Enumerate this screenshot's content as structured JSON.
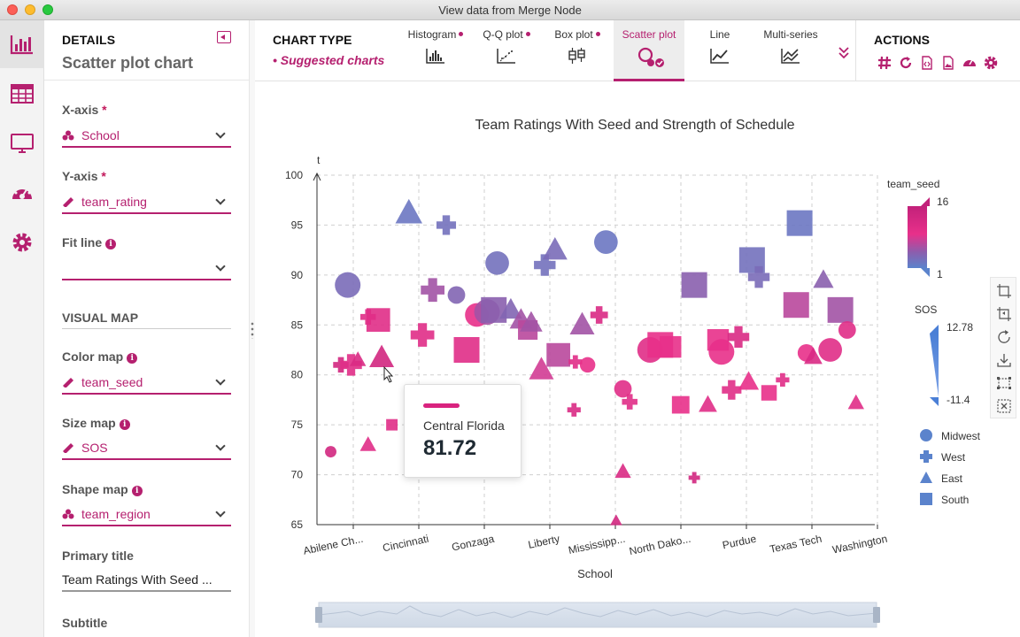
{
  "window": {
    "title": "View data from Merge Node"
  },
  "rail": {
    "items": [
      "chart",
      "table",
      "monitor",
      "dashboard",
      "settings"
    ]
  },
  "details": {
    "header": "DETAILS",
    "subheader": "Scatter plot chart",
    "x_axis": {
      "label": "X-axis",
      "required": "*",
      "value": "School"
    },
    "y_axis": {
      "label": "Y-axis",
      "required": "*",
      "value": "team_rating"
    },
    "fit_line": {
      "label": "Fit line",
      "value": ""
    },
    "visual_map": "VISUAL MAP",
    "color_map": {
      "label": "Color map",
      "value": "team_seed"
    },
    "size_map": {
      "label": "Size map",
      "value": "SOS"
    },
    "shape_map": {
      "label": "Shape map",
      "value": "team_region"
    },
    "primary_title": {
      "label": "Primary title",
      "value": "Team Ratings With Seed ..."
    },
    "subtitle": {
      "label": "Subtitle"
    }
  },
  "chart_type": {
    "title": "CHART TYPE",
    "suggested": "• Suggested charts",
    "tabs": [
      {
        "label": "Histogram",
        "suggested": true
      },
      {
        "label": "Q-Q plot",
        "suggested": true
      },
      {
        "label": "Box plot",
        "suggested": true
      },
      {
        "label": "Scatter plot",
        "active": true
      },
      {
        "label": "Line"
      },
      {
        "label": "Multi-series"
      }
    ]
  },
  "actions": {
    "title": "ACTIONS",
    "icons": [
      "hash-icon",
      "refresh-icon",
      "code-icon",
      "image-icon",
      "dashboard-icon",
      "gear-icon"
    ]
  },
  "tooltip": {
    "name": "Central Florida",
    "value": "81.72"
  },
  "colors": {
    "accent": "#b5206f",
    "pink": "#e8308a",
    "blue": "#5b83cc",
    "purple": "#8a5fae"
  },
  "chart_data": {
    "type": "scatter",
    "title": "Team Ratings With Seed and Strength of Schedule",
    "xlabel": "School",
    "ylabel": "t",
    "ylim": [
      65,
      100
    ],
    "yticks": [
      65,
      70,
      75,
      80,
      85,
      90,
      95,
      100
    ],
    "xtick_labels": [
      "Abilene Ch...",
      "Cincinnati",
      "Gonzaga",
      "Liberty",
      "Mississipp...",
      "North Dako...",
      "Purdue",
      "Texas Tech",
      "Washington"
    ],
    "legend": {
      "color_title": "team_seed",
      "color_max": "16",
      "color_min": "1",
      "size_title": "SOS",
      "size_max": "12.78",
      "size_min": "-11.4",
      "shapes": [
        {
          "name": "Midwest",
          "shape": "circle"
        },
        {
          "name": "West",
          "shape": "plus"
        },
        {
          "name": "East",
          "shape": "triangle"
        },
        {
          "name": "South",
          "shape": "square"
        }
      ]
    },
    "points": [
      [
        0.15,
        72.3,
        "circle",
        14,
        3
      ],
      [
        0.3,
        81,
        "plus",
        14,
        5
      ],
      [
        0.4,
        89,
        "circle",
        5,
        10
      ],
      [
        0.45,
        81,
        "plus",
        12,
        8
      ],
      [
        0.55,
        81.5,
        "triangle",
        13,
        5
      ],
      [
        0.7,
        85.8,
        "plus",
        12,
        5
      ],
      [
        0.85,
        85.5,
        "square",
        12,
        9
      ],
      [
        0.7,
        73,
        "triangle",
        12,
        5
      ],
      [
        0.9,
        81.72,
        "triangle",
        14,
        9
      ],
      [
        1.05,
        75,
        "square",
        12,
        3
      ],
      [
        1.3,
        96.2,
        "triangle",
        3,
        10
      ],
      [
        1.65,
        88.5,
        "plus",
        8,
        9
      ],
      [
        1.5,
        84,
        "plus",
        12,
        9
      ],
      [
        1.85,
        95,
        "plus",
        4,
        7
      ],
      [
        2.0,
        88,
        "circle",
        6,
        6
      ],
      [
        2.15,
        82.5,
        "square",
        12,
        10
      ],
      [
        2.3,
        86,
        "circle",
        11,
        9
      ],
      [
        2.45,
        86.3,
        "circle",
        8,
        10
      ],
      [
        2.55,
        86.5,
        "square",
        7,
        10
      ],
      [
        2.6,
        91.2,
        "circle",
        4,
        9
      ],
      [
        2.8,
        86.5,
        "triangle",
        6,
        8
      ],
      [
        2.95,
        85.5,
        "triangle",
        8,
        8
      ],
      [
        3.05,
        84.5,
        "square",
        9,
        7
      ],
      [
        3.1,
        85.2,
        "triangle",
        8,
        8
      ],
      [
        3.25,
        80.5,
        "triangle",
        10,
        9
      ],
      [
        3.3,
        91,
        "plus",
        4,
        8
      ],
      [
        3.45,
        92.5,
        "triangle",
        5,
        9
      ],
      [
        3.5,
        82,
        "square",
        9,
        9
      ],
      [
        3.85,
        85,
        "triangle",
        8,
        9
      ],
      [
        3.75,
        81.3,
        "plus",
        12,
        4
      ],
      [
        3.73,
        76.5,
        "plus",
        13,
        4
      ],
      [
        3.93,
        81,
        "circle",
        11,
        5
      ],
      [
        4.1,
        86,
        "plus",
        13,
        6
      ],
      [
        4.2,
        93.3,
        "circle",
        3,
        9
      ],
      [
        4.45,
        78.6,
        "circle",
        12,
        6
      ],
      [
        4.55,
        77.3,
        "plus",
        12,
        5
      ],
      [
        4.45,
        70.3,
        "triangle",
        13,
        5
      ],
      [
        4.35,
        65.4,
        "triangle",
        14,
        3
      ],
      [
        4.85,
        82.5,
        "circle",
        12,
        10
      ],
      [
        5.0,
        83,
        "square",
        11,
        10
      ],
      [
        5.15,
        82.8,
        "square",
        11,
        8
      ],
      [
        5.3,
        77,
        "square",
        11,
        6
      ],
      [
        5.5,
        69.7,
        "plus",
        14,
        3
      ],
      [
        5.7,
        77,
        "triangle",
        12,
        6
      ],
      [
        5.5,
        89,
        "square",
        7,
        10
      ],
      [
        5.85,
        83.5,
        "square",
        11,
        8
      ],
      [
        5.9,
        82.3,
        "circle",
        11,
        10
      ],
      [
        6.05,
        78.5,
        "plus",
        12,
        7
      ],
      [
        6.15,
        83.8,
        "plus",
        13,
        8
      ],
      [
        6.3,
        79.3,
        "triangle",
        11,
        7
      ],
      [
        6.35,
        91.5,
        "square",
        4,
        10
      ],
      [
        6.45,
        89.8,
        "plus",
        5,
        8
      ],
      [
        6.6,
        78.2,
        "square",
        11,
        5
      ],
      [
        6.8,
        79.5,
        "plus",
        12,
        4
      ],
      [
        7.0,
        87,
        "square",
        9,
        10
      ],
      [
        7.05,
        95.2,
        "square",
        3,
        10
      ],
      [
        7.15,
        82.2,
        "circle",
        11,
        6
      ],
      [
        7.25,
        81.8,
        "triangle",
        13,
        6
      ],
      [
        7.4,
        89.5,
        "triangle",
        7,
        7
      ],
      [
        7.5,
        82.5,
        "circle",
        12,
        9
      ],
      [
        7.65,
        86.5,
        "square",
        8,
        10
      ],
      [
        7.75,
        84.5,
        "circle",
        12,
        6
      ],
      [
        7.88,
        77.2,
        "triangle",
        12,
        5
      ]
    ]
  }
}
